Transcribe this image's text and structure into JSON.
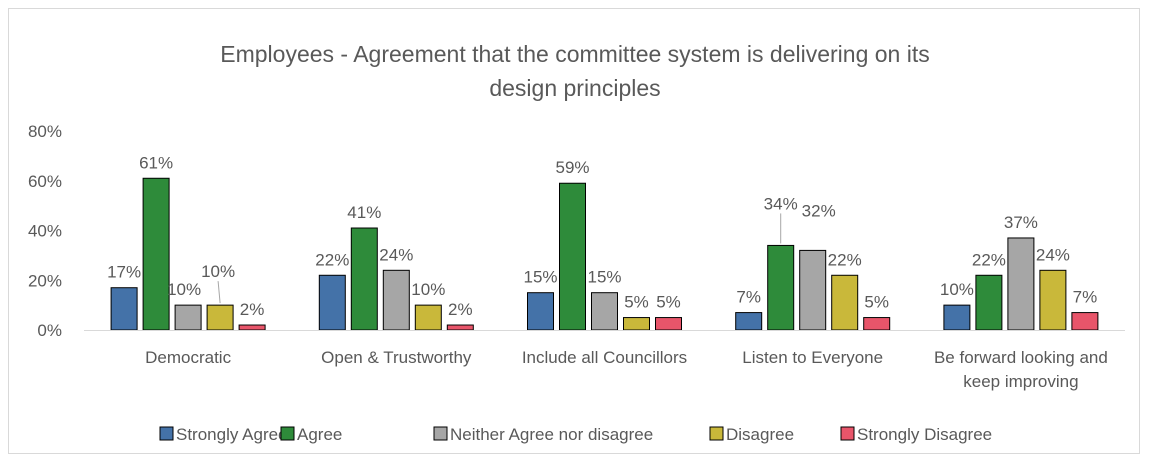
{
  "chart_data": {
    "type": "bar",
    "title": [
      "Employees - Agreement that the committee system is delivering on its",
      "design principles"
    ],
    "categories": [
      [
        "Democratic"
      ],
      [
        "Open & Trustworthy"
      ],
      [
        "Include all Councillors"
      ],
      [
        "Listen to Everyone"
      ],
      [
        "Be forward looking and",
        "keep improving"
      ]
    ],
    "series": [
      {
        "name": "Strongly Agree",
        "color": "#4472a8",
        "values": [
          17,
          22,
          15,
          7,
          10
        ]
      },
      {
        "name": "Agree",
        "color": "#2e8b3a",
        "values": [
          61,
          41,
          59,
          34,
          22
        ]
      },
      {
        "name": "Neither Agree nor disagree",
        "color": "#a6a6a6",
        "values": [
          10,
          24,
          15,
          32,
          37
        ]
      },
      {
        "name": "Disagree",
        "color": "#c9b83a",
        "values": [
          10,
          10,
          5,
          22,
          24
        ]
      },
      {
        "name": "Strongly Disagree",
        "color": "#e8556a",
        "values": [
          2,
          2,
          5,
          5,
          7
        ]
      }
    ],
    "value_suffix": "%",
    "ylim": [
      0,
      80
    ],
    "yticks": [
      "0%",
      "20%",
      "40%",
      "60%",
      "80%"
    ],
    "grid": false,
    "legend_position": "bottom"
  }
}
